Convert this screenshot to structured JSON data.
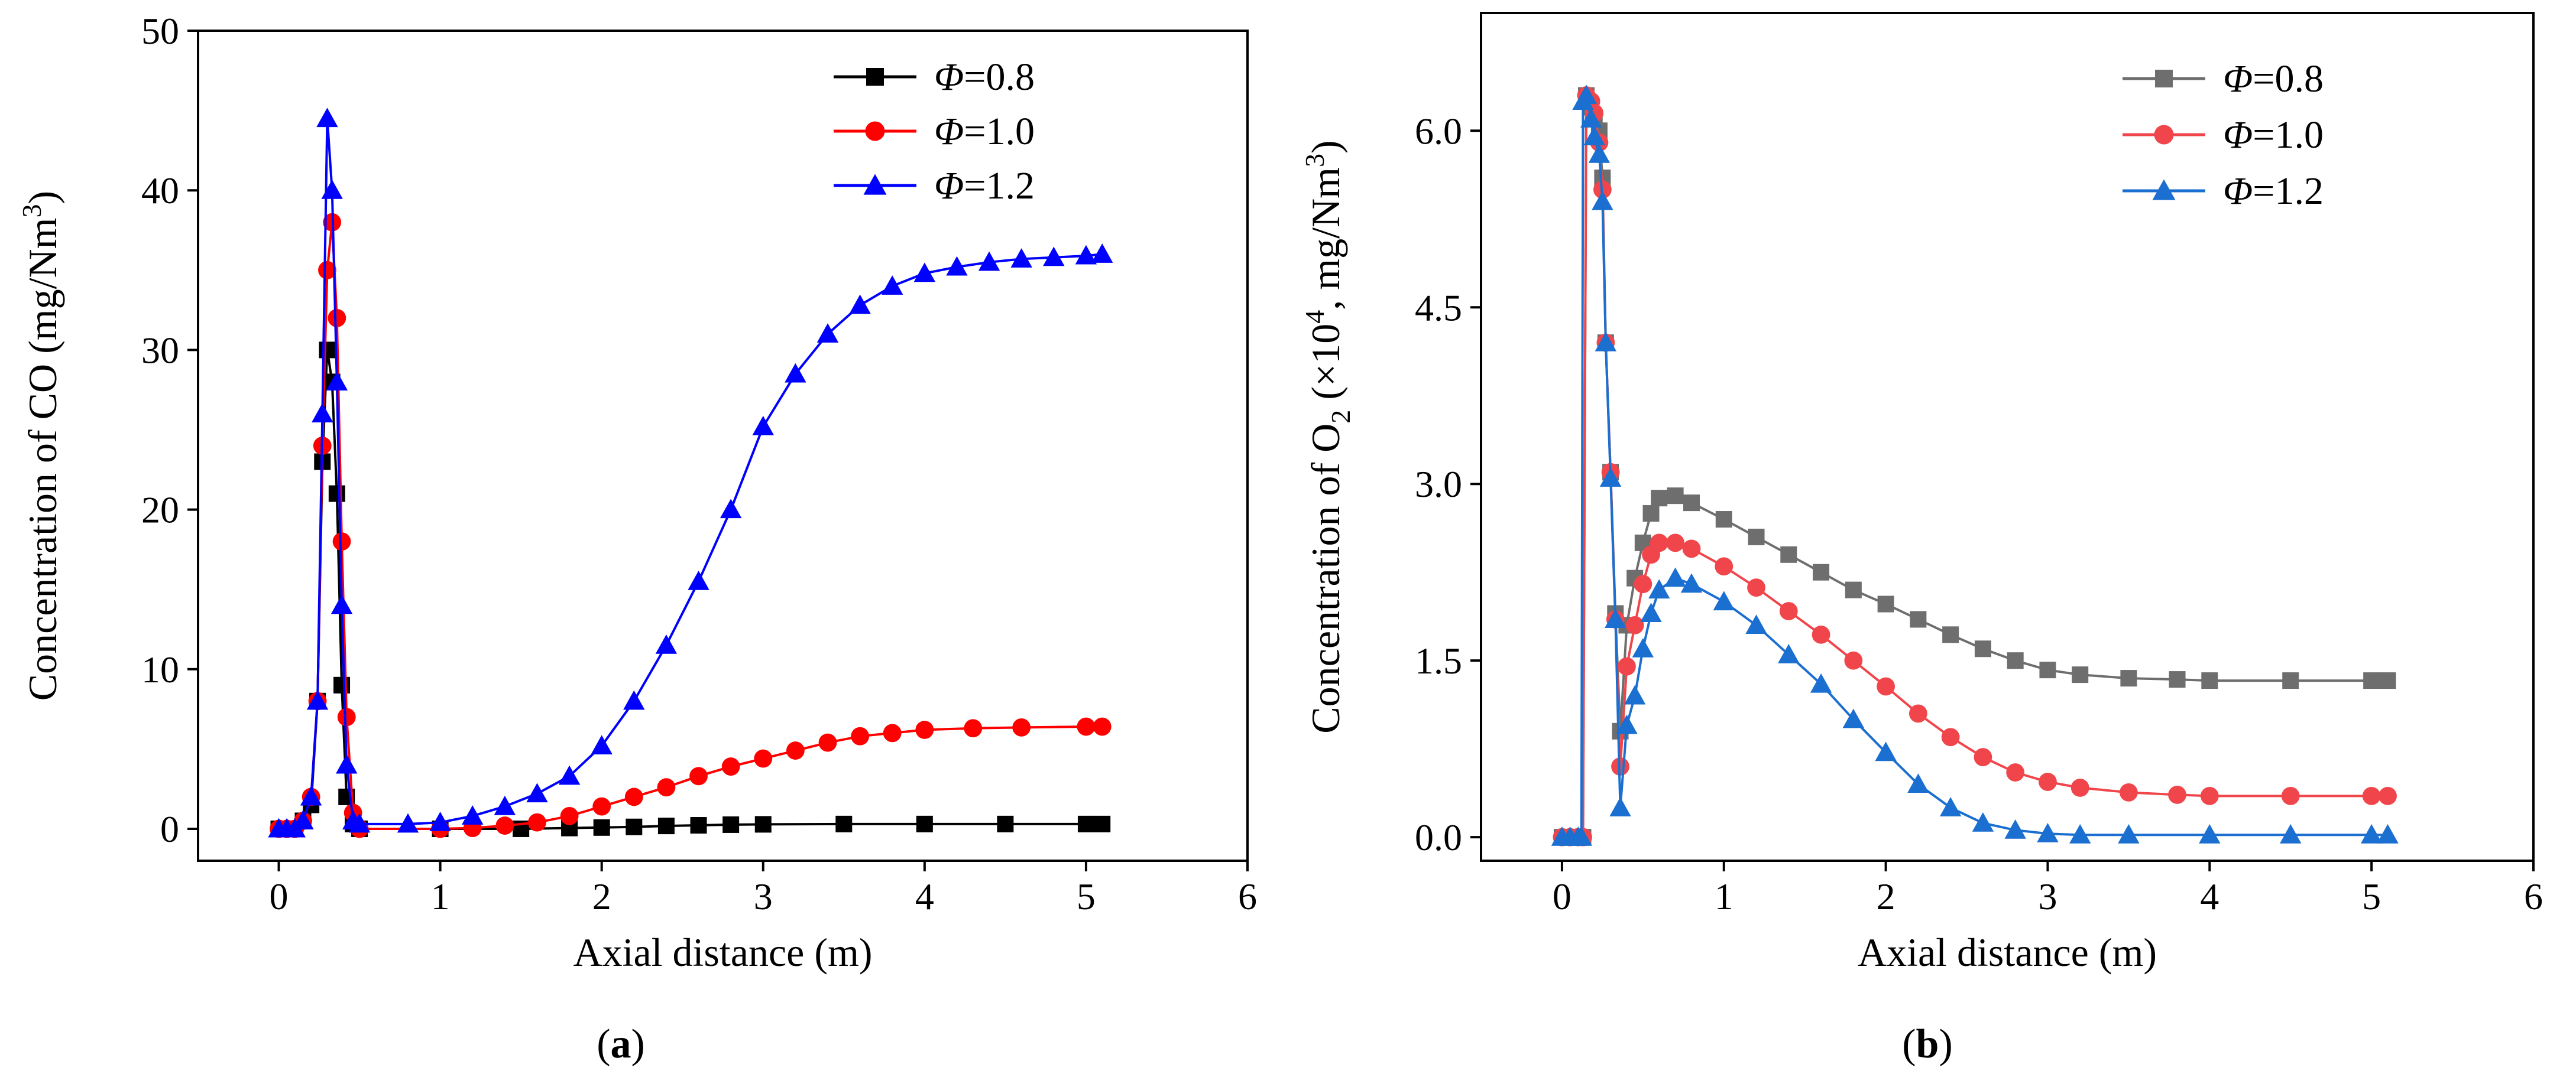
{
  "figure": {
    "panel_a_label": "a",
    "panel_b_label": "b"
  },
  "series_colors": {
    "a": [
      "#000000",
      "#ff0000",
      "#0000ff"
    ],
    "b": [
      "#6e6e6e",
      "#f0464b",
      "#1a6fd0"
    ]
  },
  "chart_data": [
    {
      "panel": "a",
      "type": "line",
      "xlabel": "Axial distance (m)",
      "ylabel": "Concentration of CO (mg/Nm3)",
      "ylabel_parts": [
        "Concentration of CO (mg/Nm",
        "3",
        ")"
      ],
      "xlim": [
        -0.5,
        6
      ],
      "ylim": [
        -2,
        50
      ],
      "xticks": [
        0,
        1,
        2,
        3,
        4,
        5,
        6
      ],
      "yticks": [
        0,
        10,
        20,
        30,
        40,
        50
      ],
      "xtick_labels": [
        "0",
        "1",
        "2",
        "3",
        "4",
        "5",
        "6"
      ],
      "ytick_labels": [
        "0",
        "10",
        "20",
        "30",
        "40",
        "50"
      ],
      "legend": [
        {
          "symbol": "Φ",
          "value": "=0.8",
          "marker": "square"
        },
        {
          "symbol": "Φ",
          "value": "=1.0",
          "marker": "circle"
        },
        {
          "symbol": "Φ",
          "value": "=1.2",
          "marker": "triangle"
        }
      ],
      "series": [
        {
          "name": "Φ=0.8",
          "marker": "square",
          "x": [
            0,
            0.05,
            0.1,
            0.15,
            0.2,
            0.24,
            0.27,
            0.3,
            0.33,
            0.36,
            0.39,
            0.42,
            0.46,
            0.5,
            1.0,
            1.5,
            1.8,
            2.0,
            2.2,
            2.4,
            2.6,
            2.8,
            3.0,
            3.5,
            4.0,
            4.5,
            5.0,
            5.1
          ],
          "y": [
            0,
            0,
            0,
            0.5,
            1.5,
            8,
            23,
            30,
            28,
            21,
            9,
            2,
            0.3,
            0,
            0,
            0,
            0.05,
            0.08,
            0.12,
            0.18,
            0.22,
            0.26,
            0.28,
            0.3,
            0.3,
            0.3,
            0.3,
            0.3
          ]
        },
        {
          "name": "Φ=1.0",
          "marker": "circle",
          "x": [
            0,
            0.05,
            0.1,
            0.15,
            0.2,
            0.24,
            0.27,
            0.3,
            0.33,
            0.36,
            0.39,
            0.42,
            0.46,
            0.5,
            1.0,
            1.2,
            1.4,
            1.6,
            1.8,
            2.0,
            2.2,
            2.4,
            2.6,
            2.8,
            3.0,
            3.2,
            3.4,
            3.6,
            3.8,
            4.0,
            4.3,
            4.6,
            5.0,
            5.1
          ],
          "y": [
            0,
            0,
            0,
            0.5,
            2,
            8,
            24,
            35,
            38,
            32,
            18,
            7,
            1,
            0,
            0,
            0.05,
            0.2,
            0.4,
            0.8,
            1.4,
            2.0,
            2.6,
            3.3,
            3.9,
            4.4,
            4.9,
            5.4,
            5.8,
            6.0,
            6.2,
            6.3,
            6.35,
            6.4,
            6.4
          ]
        },
        {
          "name": "Φ=1.2",
          "marker": "triangle",
          "x": [
            0,
            0.05,
            0.1,
            0.15,
            0.2,
            0.24,
            0.27,
            0.3,
            0.33,
            0.36,
            0.39,
            0.42,
            0.46,
            0.5,
            0.8,
            1.0,
            1.2,
            1.4,
            1.6,
            1.8,
            2.0,
            2.2,
            2.4,
            2.6,
            2.8,
            3.0,
            3.2,
            3.4,
            3.6,
            3.8,
            4.0,
            4.2,
            4.4,
            4.6,
            4.8,
            5.0,
            5.1
          ],
          "y": [
            0,
            0,
            0,
            0.5,
            2,
            8,
            26,
            44.5,
            40,
            28,
            14,
            4,
            0.5,
            0.3,
            0.3,
            0.4,
            0.8,
            1.4,
            2.2,
            3.3,
            5.2,
            8,
            11.5,
            15.5,
            20,
            25.2,
            28.5,
            31,
            32.8,
            34,
            34.8,
            35.2,
            35.5,
            35.7,
            35.8,
            35.9,
            36
          ]
        }
      ]
    },
    {
      "panel": "b",
      "type": "line",
      "xlabel": "Axial distance (m)",
      "ylabel": "Concentration of O2 (×104, mg/Nm3)",
      "ylabel_parts": [
        "Concentration of O",
        "2",
        " (×10",
        "4",
        ", mg/Nm",
        "3",
        ")"
      ],
      "xlim": [
        -0.5,
        6
      ],
      "ylim": [
        -0.2,
        7
      ],
      "xticks": [
        0,
        1,
        2,
        3,
        4,
        5,
        6
      ],
      "yticks": [
        0.0,
        1.5,
        3.0,
        4.5,
        6.0
      ],
      "xtick_labels": [
        "0",
        "1",
        "2",
        "3",
        "4",
        "5",
        "6"
      ],
      "ytick_labels": [
        "0.0",
        "1.5",
        "3.0",
        "4.5",
        "6.0"
      ],
      "legend": [
        {
          "symbol": "Φ",
          "value": "=0.8",
          "marker": "square"
        },
        {
          "symbol": "Φ",
          "value": "=1.0",
          "marker": "circle"
        },
        {
          "symbol": "Φ",
          "value": "=1.2",
          "marker": "triangle"
        }
      ],
      "series": [
        {
          "name": "Φ=0.8",
          "marker": "square",
          "x": [
            0,
            0.05,
            0.1,
            0.13,
            0.15,
            0.18,
            0.2,
            0.23,
            0.25,
            0.27,
            0.3,
            0.33,
            0.36,
            0.4,
            0.45,
            0.5,
            0.55,
            0.6,
            0.7,
            0.8,
            1.0,
            1.2,
            1.4,
            1.6,
            1.8,
            2.0,
            2.2,
            2.4,
            2.6,
            2.8,
            3.0,
            3.2,
            3.5,
            3.8,
            4.0,
            4.5,
            5.0,
            5.1
          ],
          "y": [
            0,
            0,
            0,
            0,
            6.3,
            6.2,
            6.1,
            6.0,
            5.6,
            4.2,
            3.1,
            1.9,
            0.9,
            1.8,
            2.2,
            2.5,
            2.75,
            2.88,
            2.9,
            2.84,
            2.7,
            2.55,
            2.4,
            2.25,
            2.1,
            1.98,
            1.85,
            1.72,
            1.6,
            1.5,
            1.42,
            1.38,
            1.35,
            1.34,
            1.33,
            1.33,
            1.33,
            1.33
          ]
        },
        {
          "name": "Φ=1.0",
          "marker": "circle",
          "x": [
            0,
            0.05,
            0.1,
            0.13,
            0.15,
            0.18,
            0.2,
            0.23,
            0.25,
            0.27,
            0.3,
            0.33,
            0.36,
            0.4,
            0.45,
            0.5,
            0.55,
            0.6,
            0.7,
            0.8,
            1.0,
            1.2,
            1.4,
            1.6,
            1.8,
            2.0,
            2.2,
            2.4,
            2.6,
            2.8,
            3.0,
            3.2,
            3.5,
            3.8,
            4.0,
            4.5,
            5.0,
            5.1
          ],
          "y": [
            0,
            0,
            0,
            0,
            6.3,
            6.25,
            6.15,
            5.9,
            5.5,
            4.2,
            3.1,
            1.85,
            0.6,
            1.45,
            1.8,
            2.15,
            2.4,
            2.5,
            2.5,
            2.45,
            2.3,
            2.12,
            1.92,
            1.72,
            1.5,
            1.28,
            1.05,
            0.85,
            0.68,
            0.55,
            0.47,
            0.42,
            0.38,
            0.36,
            0.35,
            0.35,
            0.35,
            0.35
          ]
        },
        {
          "name": "Φ=1.2",
          "marker": "triangle",
          "x": [
            0,
            0.05,
            0.1,
            0.12,
            0.13,
            0.15,
            0.18,
            0.2,
            0.23,
            0.25,
            0.27,
            0.3,
            0.33,
            0.36,
            0.4,
            0.45,
            0.5,
            0.55,
            0.6,
            0.7,
            0.8,
            1.0,
            1.2,
            1.4,
            1.6,
            1.8,
            2.0,
            2.2,
            2.4,
            2.6,
            2.8,
            3.0,
            3.2,
            3.5,
            4.0,
            4.5,
            5.0,
            5.1
          ],
          "y": [
            0,
            0,
            0,
            0,
            6.25,
            6.3,
            6.1,
            5.95,
            5.8,
            5.4,
            4.2,
            3.05,
            1.85,
            0.25,
            0.95,
            1.2,
            1.6,
            1.9,
            2.1,
            2.2,
            2.15,
            2.0,
            1.8,
            1.55,
            1.3,
            1.0,
            0.72,
            0.45,
            0.25,
            0.12,
            0.06,
            0.03,
            0.02,
            0.02,
            0.02,
            0.02,
            0.02,
            0.02
          ]
        }
      ]
    }
  ]
}
